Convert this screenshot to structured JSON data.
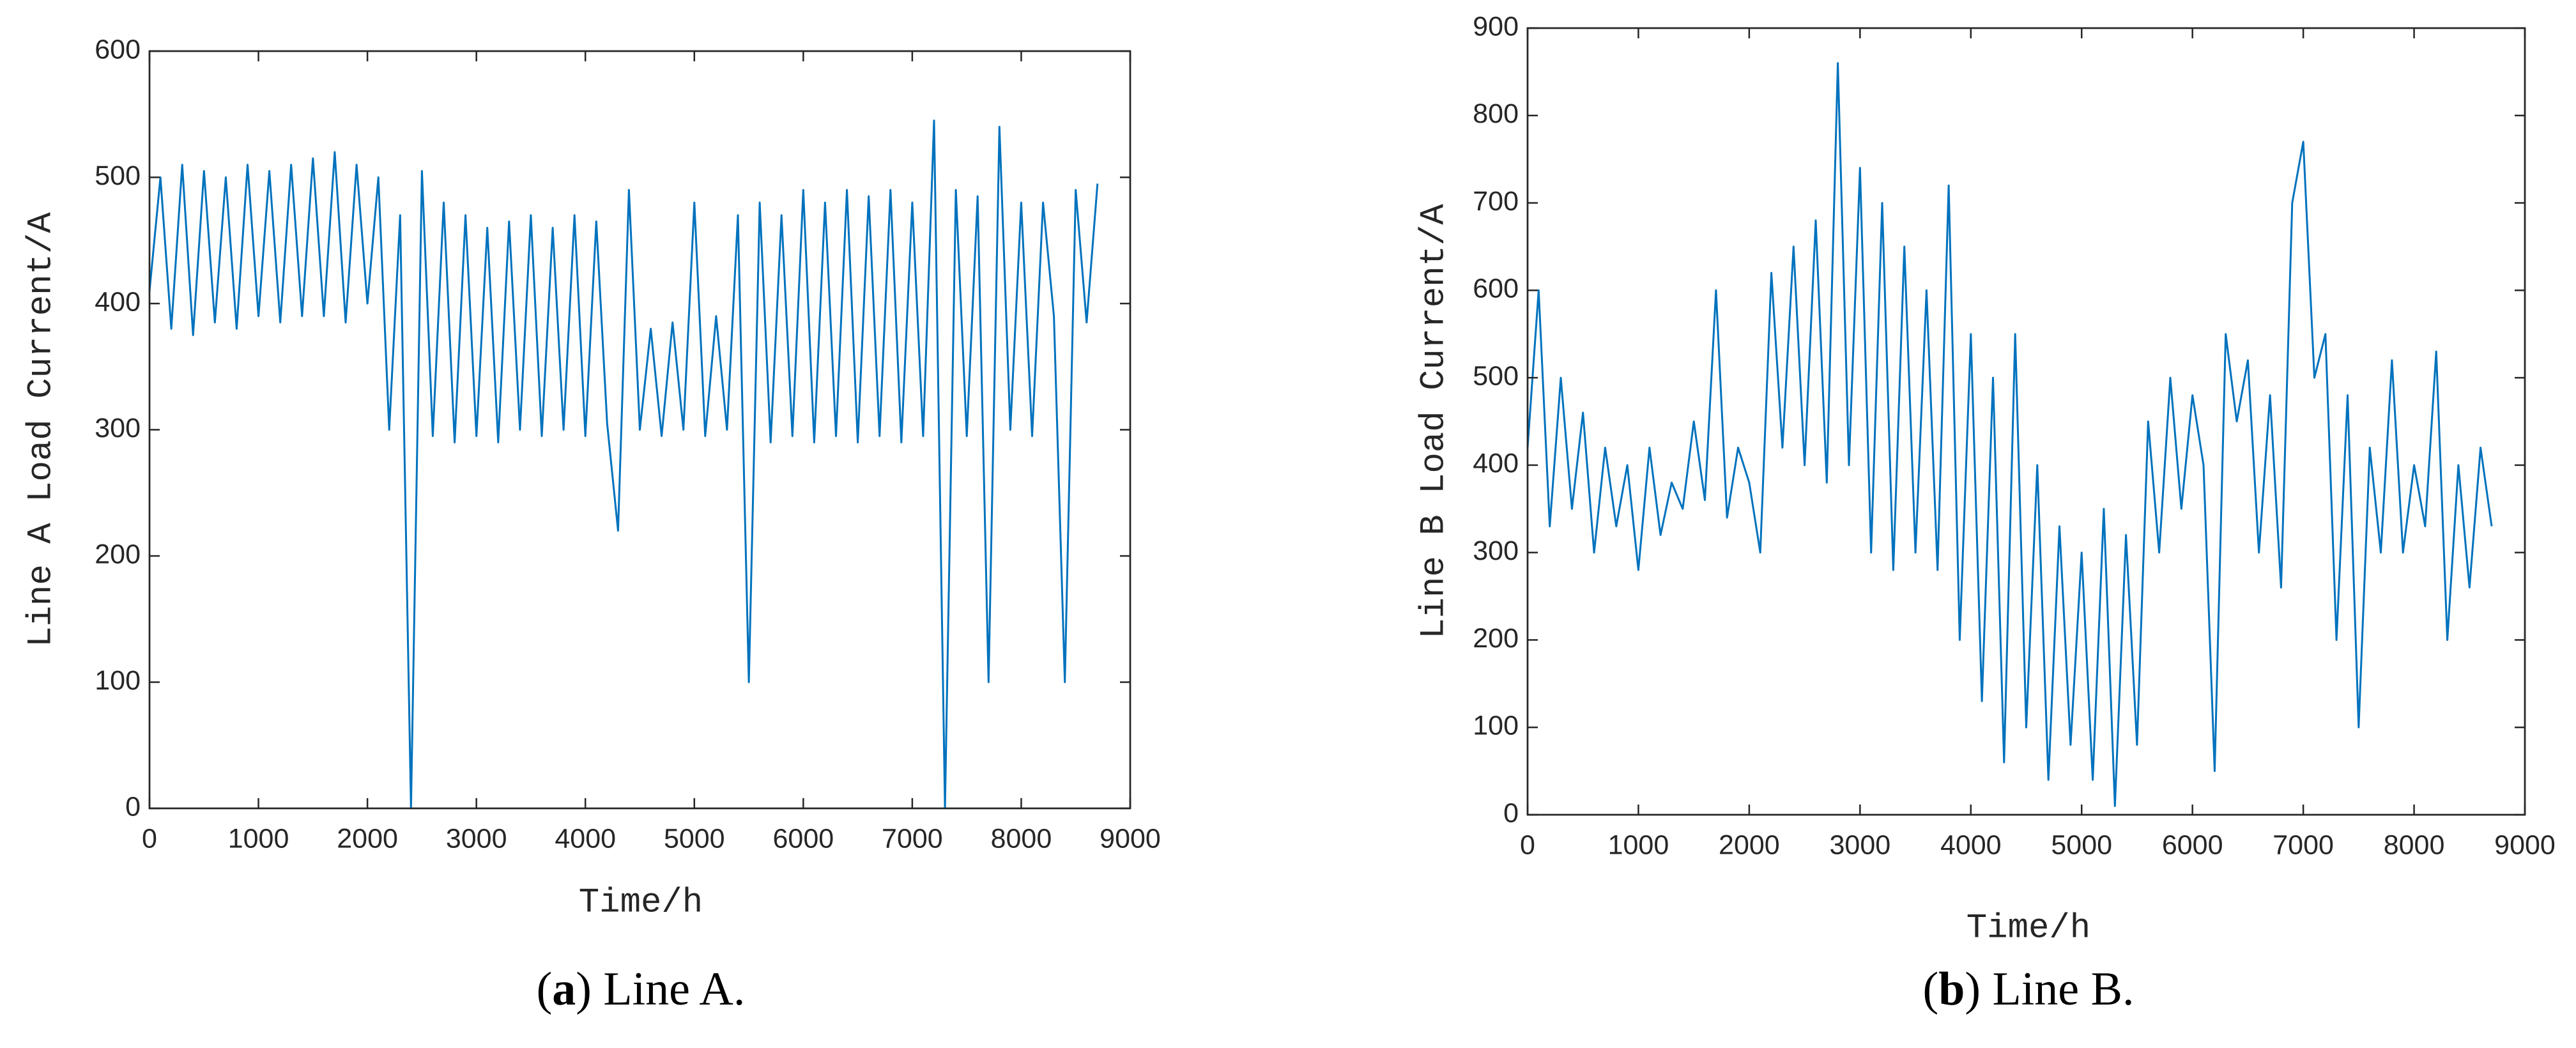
{
  "chart_data": [
    {
      "type": "line",
      "xlabel": "Time/h",
      "ylabel": "Line A Load Current/A",
      "caption_parts": [
        "(",
        "a",
        ") Line A."
      ],
      "xlim": [
        0,
        9000
      ],
      "xticks": [
        0,
        1000,
        2000,
        3000,
        4000,
        5000,
        6000,
        7000,
        8000,
        9000
      ],
      "ylim": [
        0,
        600
      ],
      "yticks": [
        0,
        100,
        200,
        300,
        400,
        500,
        600
      ],
      "series": [
        {
          "color": "#0072bd",
          "x": [
            0,
            100,
            200,
            300,
            400,
            500,
            600,
            700,
            800,
            900,
            1000,
            1100,
            1200,
            1300,
            1400,
            1500,
            1600,
            1700,
            1800,
            1900,
            2000,
            2100,
            2200,
            2300,
            2400,
            2500,
            2600,
            2700,
            2800,
            2900,
            3000,
            3100,
            3200,
            3300,
            3400,
            3500,
            3600,
            3700,
            3800,
            3900,
            4000,
            4100,
            4200,
            4300,
            4400,
            4500,
            4600,
            4700,
            4800,
            4900,
            5000,
            5100,
            5200,
            5300,
            5400,
            5500,
            5600,
            5700,
            5800,
            5900,
            6000,
            6100,
            6200,
            6300,
            6400,
            6500,
            6600,
            6700,
            6800,
            6900,
            7000,
            7100,
            7200,
            7300,
            7400,
            7500,
            7600,
            7700,
            7800,
            7900,
            8000,
            8100,
            8200,
            8300,
            8400,
            8500,
            8600,
            8700
          ],
          "values": [
            410,
            500,
            380,
            510,
            375,
            505,
            385,
            500,
            380,
            510,
            390,
            505,
            385,
            510,
            390,
            515,
            390,
            520,
            385,
            510,
            400,
            500,
            300,
            470,
            0,
            505,
            295,
            480,
            290,
            470,
            295,
            460,
            290,
            465,
            300,
            470,
            295,
            460,
            300,
            470,
            295,
            465,
            305,
            220,
            490,
            300,
            380,
            295,
            385,
            300,
            480,
            295,
            390,
            300,
            470,
            100,
            480,
            290,
            470,
            295,
            490,
            290,
            480,
            295,
            490,
            290,
            485,
            295,
            490,
            290,
            480,
            295,
            545,
            0,
            490,
            295,
            485,
            100,
            540,
            300,
            480,
            295,
            480,
            390,
            100,
            490,
            385,
            495
          ]
        }
      ]
    },
    {
      "type": "line",
      "xlabel": "Time/h",
      "ylabel": "Line B Load Current/A",
      "caption_parts": [
        "(",
        "b",
        ") Line B."
      ],
      "xlim": [
        0,
        9000
      ],
      "xticks": [
        0,
        1000,
        2000,
        3000,
        4000,
        5000,
        6000,
        7000,
        8000,
        9000
      ],
      "ylim": [
        0,
        900
      ],
      "yticks": [
        0,
        100,
        200,
        300,
        400,
        500,
        600,
        700,
        800,
        900
      ],
      "series": [
        {
          "color": "#0072bd",
          "x": [
            0,
            100,
            200,
            300,
            400,
            500,
            600,
            700,
            800,
            900,
            1000,
            1100,
            1200,
            1300,
            1400,
            1500,
            1600,
            1700,
            1800,
            1900,
            2000,
            2100,
            2200,
            2300,
            2400,
            2500,
            2600,
            2700,
            2800,
            2900,
            3000,
            3100,
            3200,
            3300,
            3400,
            3500,
            3600,
            3700,
            3800,
            3900,
            4000,
            4100,
            4200,
            4300,
            4400,
            4500,
            4600,
            4700,
            4800,
            4900,
            5000,
            5100,
            5200,
            5300,
            5400,
            5500,
            5600,
            5700,
            5800,
            5900,
            6000,
            6100,
            6200,
            6300,
            6400,
            6500,
            6600,
            6700,
            6800,
            6900,
            7000,
            7100,
            7200,
            7300,
            7400,
            7500,
            7600,
            7700,
            7800,
            7900,
            8000,
            8100,
            8200,
            8300,
            8400,
            8500,
            8600,
            8700
          ],
          "values": [
            420,
            600,
            330,
            500,
            350,
            460,
            300,
            420,
            330,
            400,
            280,
            420,
            320,
            380,
            350,
            450,
            360,
            600,
            340,
            420,
            380,
            300,
            620,
            420,
            650,
            400,
            680,
            380,
            860,
            400,
            740,
            300,
            700,
            280,
            650,
            300,
            600,
            280,
            720,
            200,
            550,
            130,
            500,
            60,
            550,
            100,
            400,
            40,
            330,
            80,
            300,
            40,
            350,
            10,
            320,
            80,
            450,
            300,
            500,
            350,
            480,
            400,
            50,
            550,
            450,
            520,
            300,
            480,
            260,
            700,
            770,
            500,
            550,
            200,
            480,
            100,
            420,
            300,
            520,
            300,
            400,
            330,
            530,
            200,
            400,
            260,
            420,
            330
          ]
        }
      ]
    }
  ]
}
